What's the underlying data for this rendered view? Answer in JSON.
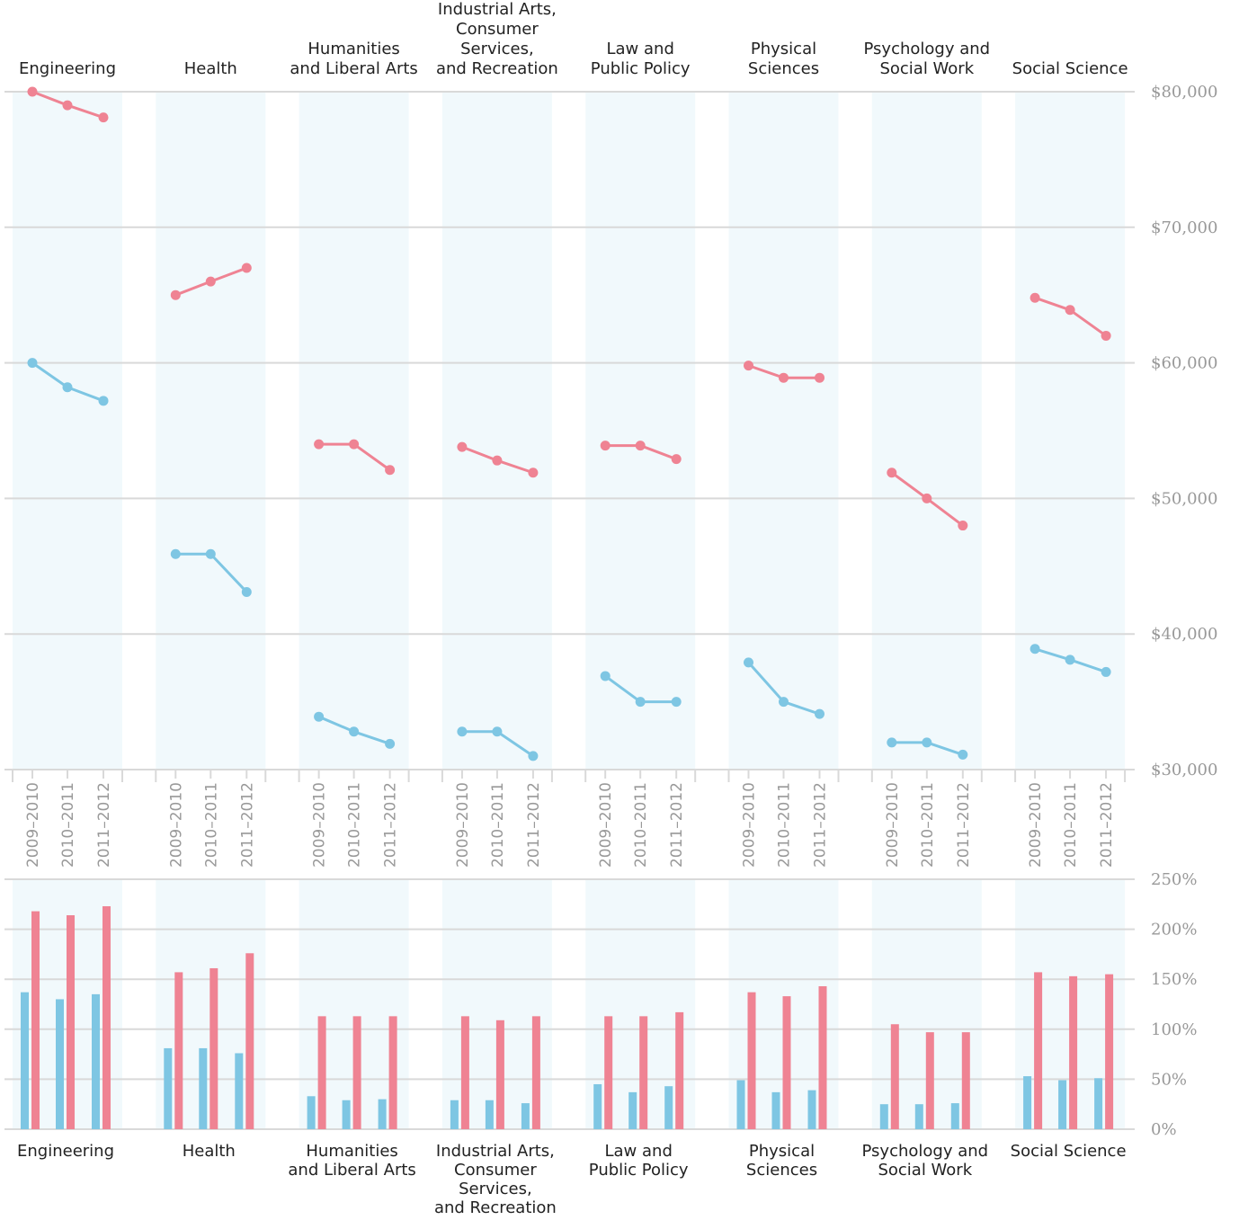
{
  "categories_display": [
    [
      "Engineering"
    ],
    [
      "Health"
    ],
    [
      "Humanities",
      "and Liberal Arts"
    ],
    [
      "Industrial Arts,",
      "Consumer",
      "Services,",
      "and Recreation"
    ],
    [
      "Law and",
      "Public Policy"
    ],
    [
      "Physical",
      "Sciences"
    ],
    [
      "Psychology and",
      "Social Work"
    ],
    [
      "Social Science"
    ]
  ],
  "colors": {
    "red": "#ef8393",
    "blue": "#7ec6e3",
    "band": "#f1f9fc",
    "grid": "#d9d9d9",
    "tick": "#999999"
  },
  "chart_data": [
    {
      "type": "line",
      "categories": [
        "Engineering",
        "Health",
        "Humanities and Liberal Arts",
        "Industrial Arts, Consumer Services, and Recreation",
        "Law and Public Policy",
        "Physical Sciences",
        "Psychology and Social Work",
        "Social Science"
      ],
      "x": [
        "2009–2010",
        "2010–2011",
        "2011–2012"
      ],
      "ylim": [
        30000,
        80000
      ],
      "yticks": [
        "$30,000",
        "$40,000",
        "$50,000",
        "$60,000",
        "$70,000",
        "$80,000"
      ],
      "grid": true,
      "series": [
        {
          "color": "red",
          "values": [
            [
              80000,
              79000,
              78100
            ],
            [
              65000,
              66000,
              67000
            ],
            [
              54000,
              54000,
              52100
            ],
            [
              53800,
              52800,
              51900
            ],
            [
              53900,
              53900,
              52900
            ],
            [
              59800,
              58900,
              58900
            ],
            [
              51900,
              50000,
              48000
            ],
            [
              64800,
              63900,
              62000
            ]
          ]
        },
        {
          "color": "blue",
          "values": [
            [
              60000,
              58200,
              57200
            ],
            [
              45900,
              45900,
              43100
            ],
            [
              33900,
              32800,
              31900
            ],
            [
              32800,
              32800,
              31000
            ],
            [
              36900,
              35000,
              35000
            ],
            [
              37900,
              35000,
              34100
            ],
            [
              32000,
              32000,
              31100
            ],
            [
              38900,
              38100,
              37200
            ]
          ]
        }
      ]
    },
    {
      "type": "bar",
      "categories": [
        "Engineering",
        "Health",
        "Humanities and Liberal Arts",
        "Industrial Arts, Consumer Services, and Recreation",
        "Law and Public Policy",
        "Physical Sciences",
        "Psychology and Social Work",
        "Social Science"
      ],
      "x": [
        "2009–2010",
        "2010–2011",
        "2011–2012"
      ],
      "ylim": [
        0,
        250
      ],
      "yticks": [
        "0%",
        "50%",
        "100%",
        "150%",
        "200%",
        "250%"
      ],
      "grid": true,
      "series": [
        {
          "color": "blue",
          "values": [
            [
              137,
              130,
              135
            ],
            [
              81,
              81,
              76
            ],
            [
              33,
              29,
              30
            ],
            [
              29,
              29,
              26
            ],
            [
              45,
              37,
              43
            ],
            [
              49,
              37,
              39
            ],
            [
              25,
              25,
              26
            ],
            [
              53,
              49,
              51
            ]
          ]
        },
        {
          "color": "red",
          "values": [
            [
              218,
              214,
              223
            ],
            [
              157,
              161,
              176
            ],
            [
              113,
              113,
              113
            ],
            [
              113,
              109,
              113
            ],
            [
              113,
              113,
              117
            ],
            [
              137,
              133,
              143
            ],
            [
              105,
              97,
              97
            ],
            [
              157,
              153,
              155
            ]
          ]
        }
      ]
    }
  ]
}
